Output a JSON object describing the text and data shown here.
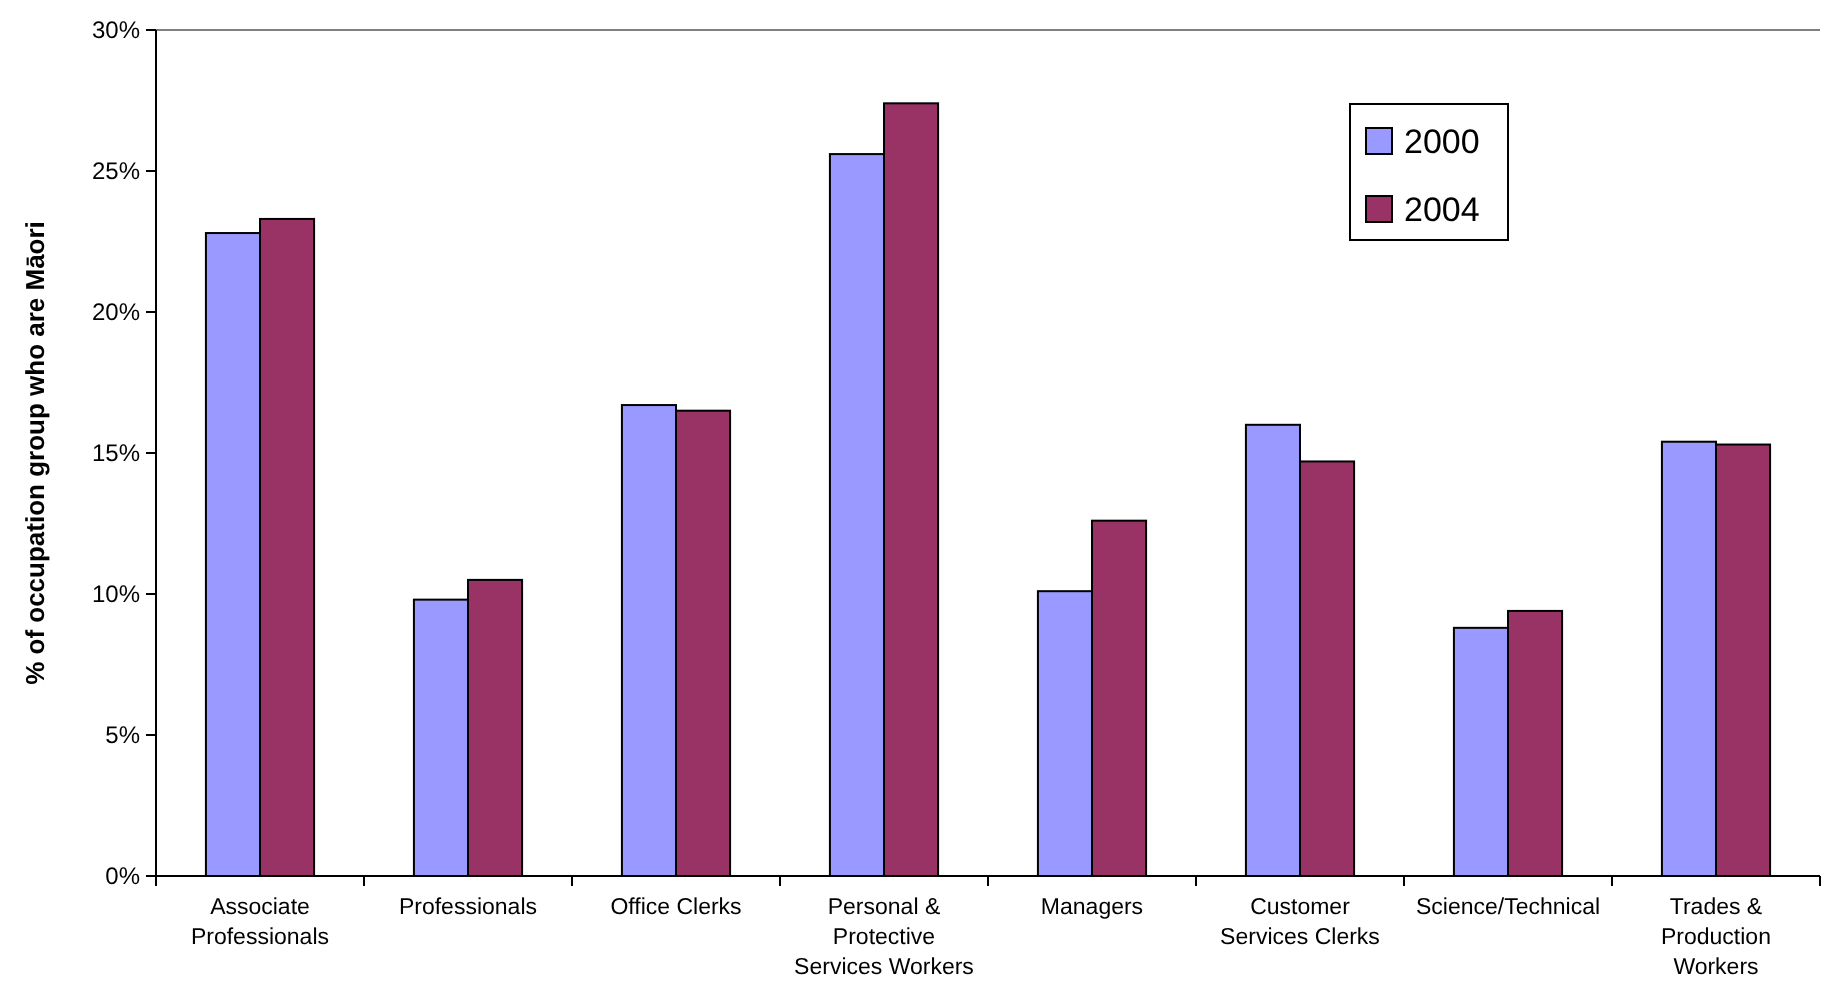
{
  "chart_data": {
    "type": "bar",
    "ylabel": "% of occupation group who are Māori",
    "categories": [
      "Associate Professionals",
      "Professionals",
      "Office Clerks",
      "Personal & Protective Services Workers",
      "Managers",
      "Customer Services Clerks",
      "Science/Technical",
      "Trades & Production Workers"
    ],
    "series": [
      {
        "name": "2000",
        "color": "#9999ff",
        "values": [
          22.8,
          9.8,
          16.7,
          25.6,
          10.1,
          16.0,
          8.8,
          15.4
        ]
      },
      {
        "name": "2004",
        "color": "#993366",
        "values": [
          23.3,
          10.5,
          16.5,
          27.4,
          12.6,
          14.7,
          9.4,
          15.3
        ]
      }
    ],
    "ylim": [
      0,
      30
    ],
    "yticks": [
      {
        "value": 0,
        "label": "0%"
      },
      {
        "value": 5,
        "label": "5%"
      },
      {
        "value": 10,
        "label": "10%"
      },
      {
        "value": 15,
        "label": "15%"
      },
      {
        "value": 20,
        "label": "20%"
      },
      {
        "value": 25,
        "label": "25%"
      },
      {
        "value": 30,
        "label": "30%"
      }
    ],
    "grid": false,
    "legend": "top right"
  }
}
